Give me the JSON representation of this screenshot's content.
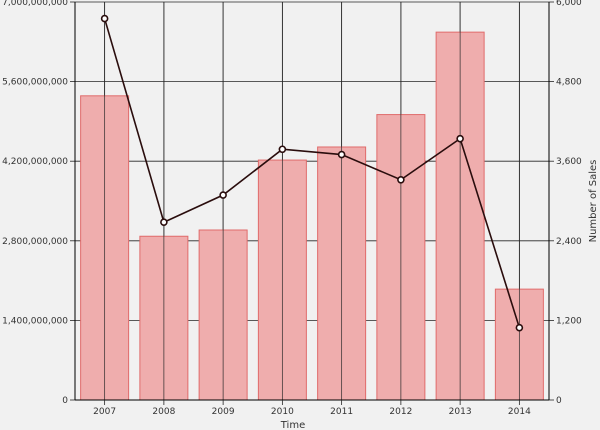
{
  "chart_data": {
    "type": "bar",
    "categories": [
      "2007",
      "2008",
      "2009",
      "2010",
      "2011",
      "2012",
      "2013",
      "2014"
    ],
    "series": [
      {
        "type": "bar",
        "axis": "left",
        "values": [
          5350000000,
          2880000000,
          2990000000,
          4220000000,
          4450000000,
          5020000000,
          6470000000,
          1950000000
        ]
      },
      {
        "type": "line",
        "axis": "right",
        "values": [
          5750,
          2680,
          3090,
          3780,
          3700,
          3320,
          3940,
          1090
        ]
      }
    ],
    "xlabel": "Time",
    "ylabel": "",
    "y2label": "Number of Sales",
    "ylim": [
      0,
      7000000000
    ],
    "y2lim": [
      0,
      6000
    ],
    "yticks": [
      "0",
      "1,400,000,000",
      "2,800,000,000",
      "4,200,000,000",
      "5,600,000,000",
      "7,000,000,000"
    ],
    "y2ticks": [
      "0",
      "1,200",
      "2,400",
      "3,600",
      "4,800",
      "6,000"
    ],
    "grid": true,
    "colors": {
      "bar_fill": "#efadad",
      "bar_stroke": "#e06b6b",
      "line": "#2a0d0d",
      "marker_fill": "#ffffff",
      "grid": "#262626",
      "background": "#f1f1f1"
    }
  }
}
